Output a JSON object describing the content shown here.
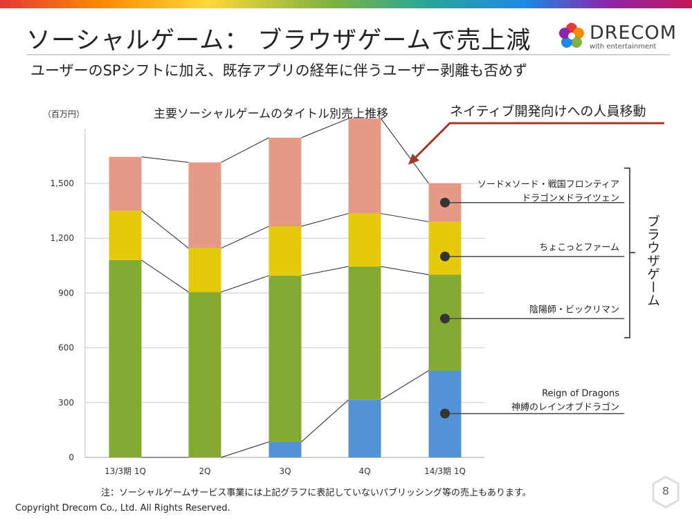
{
  "header": {
    "title": "ソーシャルゲーム： ブラウザゲームで売上減",
    "subtitle": "ユーザーのSPシフトに加え、既存アプリの経年に伴うユーザー剥離も否めず"
  },
  "logo": {
    "word": "DRECOM",
    "tagline": "with entertainment"
  },
  "colors": {
    "browser_top": "#E59A86",
    "browser_mid": "#E5C90B",
    "browser_low": "#84AA33",
    "native": "#5393D5",
    "arrow": "#A0392B"
  },
  "chart_data": {
    "type": "bar",
    "stacked": true,
    "title": "主要ソーシャルゲームのタイトル別売上推移",
    "unit_label": "（百万円）",
    "categories": [
      "13/3期 1Q",
      "2Q",
      "3Q",
      "4Q",
      "14/3期 1Q"
    ],
    "series": [
      {
        "name": "Reign of Dragons 神縛のレインオブドラゴン",
        "values": [
          0,
          0,
          85,
          315,
          475
        ]
      },
      {
        "name": "陰陽師・ビックリマン",
        "values": [
          1080,
          905,
          910,
          730,
          525
        ]
      },
      {
        "name": "ちょこっとファーム",
        "values": [
          270,
          240,
          270,
          290,
          290
        ]
      },
      {
        "name": "ソード×ソード・戦国フロンティア ドラゴン×ドライツェン",
        "values": [
          295,
          470,
          485,
          520,
          210
        ]
      }
    ],
    "ylim": [
      0,
      1800
    ],
    "yticks": [
      0,
      300,
      600,
      900,
      1200,
      1500
    ],
    "ytick_labels": [
      "0",
      "300",
      "600",
      "900",
      "1,200",
      "1,500"
    ]
  },
  "annotations": {
    "callout": "ネイティブ開発向けへの人員移動",
    "labels": [
      {
        "lines": [
          "ソード×ソード・戦国フロンティア",
          "ドラゴン×ドライツェン"
        ]
      },
      {
        "lines": [
          "ちょこっとファーム"
        ]
      },
      {
        "lines": [
          "陰陽師・ビックリマン"
        ]
      },
      {
        "lines": [
          "Reign of Dragons",
          "神縛のレインオブドラゴン"
        ]
      }
    ],
    "bracket_label": "ブラウザゲーム"
  },
  "footer": {
    "note": "注：ソーシャルゲームサービス事業には上記グラフに表記していないパブリッシング等の売上もあります。",
    "copyright": "Copyright Drecom Co., Ltd. All Rights Reserved.",
    "page": "8"
  }
}
